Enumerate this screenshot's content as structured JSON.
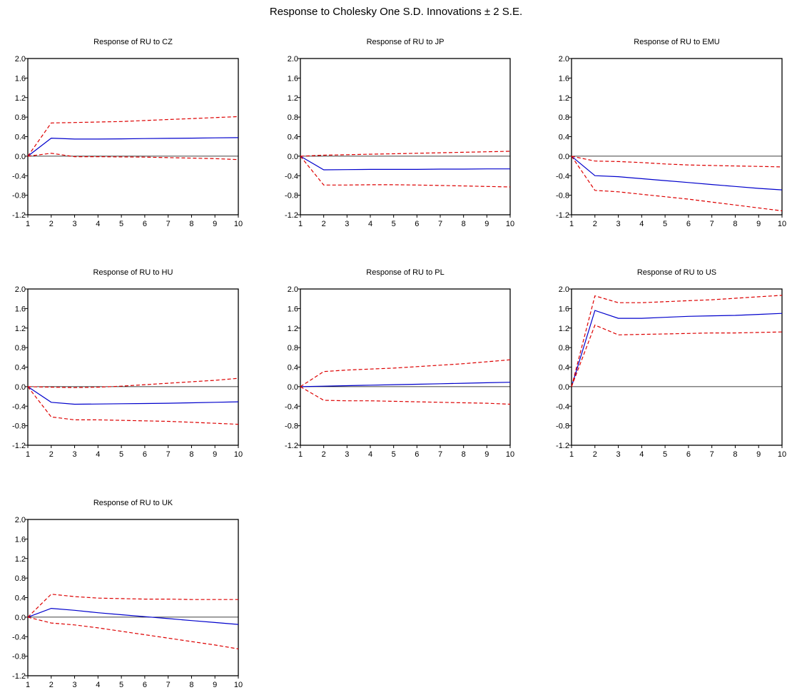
{
  "figure_title": "Response to Cholesky One S.D. Innovations ± 2 S.E.",
  "colors": {
    "response": "#0000cc",
    "bands": "#dd0000",
    "zero_line": "#000000",
    "axes": "#000000"
  },
  "chart_data": [
    {
      "type": "line",
      "title": "Response of RU to CZ",
      "x": [
        1,
        2,
        3,
        4,
        5,
        6,
        7,
        8,
        9,
        10
      ],
      "ylim": [
        -1.2,
        2.0
      ],
      "yticks": [
        "2.0",
        "1.6",
        "1.2",
        "0.8",
        "0.4",
        "0.0",
        "-0.4",
        "-0.8",
        "-1.2"
      ],
      "xticks": [
        "1",
        "2",
        "3",
        "4",
        "5",
        "6",
        "7",
        "8",
        "9",
        "10"
      ],
      "grid": false,
      "series": [
        {
          "role": "response",
          "values": [
            0.0,
            0.37,
            0.35,
            0.35,
            0.355,
            0.36,
            0.365,
            0.37,
            0.375,
            0.38
          ]
        },
        {
          "role": "upper_band",
          "values": [
            0.0,
            0.68,
            0.69,
            0.7,
            0.71,
            0.73,
            0.75,
            0.77,
            0.79,
            0.81
          ]
        },
        {
          "role": "lower_band",
          "values": [
            0.0,
            0.06,
            -0.01,
            -0.01,
            -0.015,
            -0.02,
            -0.03,
            -0.04,
            -0.05,
            -0.07
          ]
        }
      ]
    },
    {
      "type": "line",
      "title": "Response of RU to JP",
      "x": [
        1,
        2,
        3,
        4,
        5,
        6,
        7,
        8,
        9,
        10
      ],
      "ylim": [
        -1.2,
        2.0
      ],
      "yticks": [
        "2.0",
        "1.6",
        "1.2",
        "0.8",
        "0.4",
        "0.0",
        "-0.4",
        "-0.8",
        "-1.2"
      ],
      "xticks": [
        "1",
        "2",
        "3",
        "4",
        "5",
        "6",
        "7",
        "8",
        "9",
        "10"
      ],
      "grid": false,
      "series": [
        {
          "role": "response",
          "values": [
            0.0,
            -0.28,
            -0.275,
            -0.27,
            -0.27,
            -0.27,
            -0.265,
            -0.265,
            -0.26,
            -0.26
          ]
        },
        {
          "role": "upper_band",
          "values": [
            0.0,
            0.02,
            0.03,
            0.04,
            0.05,
            0.06,
            0.07,
            0.08,
            0.09,
            0.1
          ]
        },
        {
          "role": "lower_band",
          "values": [
            0.0,
            -0.59,
            -0.59,
            -0.585,
            -0.585,
            -0.59,
            -0.6,
            -0.61,
            -0.62,
            -0.63
          ]
        }
      ]
    },
    {
      "type": "line",
      "title": "Response of RU to EMU",
      "x": [
        1,
        2,
        3,
        4,
        5,
        6,
        7,
        8,
        9,
        10
      ],
      "ylim": [
        -1.2,
        2.0
      ],
      "yticks": [
        "2.0",
        "1.6",
        "1.2",
        "0.8",
        "0.4",
        "0.0",
        "-0.4",
        "-0.8",
        "-1.2"
      ],
      "xticks": [
        "1",
        "2",
        "3",
        "4",
        "5",
        "6",
        "7",
        "8",
        "9",
        "10"
      ],
      "grid": false,
      "series": [
        {
          "role": "response",
          "values": [
            0.0,
            -0.4,
            -0.42,
            -0.46,
            -0.5,
            -0.54,
            -0.58,
            -0.62,
            -0.66,
            -0.69
          ]
        },
        {
          "role": "upper_band",
          "values": [
            0.0,
            -0.1,
            -0.11,
            -0.13,
            -0.16,
            -0.18,
            -0.19,
            -0.2,
            -0.21,
            -0.22
          ]
        },
        {
          "role": "lower_band",
          "values": [
            0.0,
            -0.7,
            -0.73,
            -0.78,
            -0.83,
            -0.88,
            -0.94,
            -1.0,
            -1.06,
            -1.12
          ]
        }
      ]
    },
    {
      "type": "line",
      "title": "Response of RU to HU",
      "x": [
        1,
        2,
        3,
        4,
        5,
        6,
        7,
        8,
        9,
        10
      ],
      "ylim": [
        -1.2,
        2.0
      ],
      "yticks": [
        "2.0",
        "1.6",
        "1.2",
        "0.8",
        "0.4",
        "0.0",
        "-0.4",
        "-0.8",
        "-1.2"
      ],
      "xticks": [
        "1",
        "2",
        "3",
        "4",
        "5",
        "6",
        "7",
        "8",
        "9",
        "10"
      ],
      "grid": false,
      "series": [
        {
          "role": "response",
          "values": [
            0.0,
            -0.32,
            -0.36,
            -0.355,
            -0.35,
            -0.345,
            -0.34,
            -0.33,
            -0.32,
            -0.31
          ]
        },
        {
          "role": "upper_band",
          "values": [
            0.0,
            -0.01,
            -0.02,
            -0.01,
            0.01,
            0.04,
            0.07,
            0.1,
            0.13,
            0.17
          ]
        },
        {
          "role": "lower_band",
          "values": [
            0.0,
            -0.62,
            -0.68,
            -0.68,
            -0.69,
            -0.7,
            -0.71,
            -0.73,
            -0.75,
            -0.77
          ]
        }
      ]
    },
    {
      "type": "line",
      "title": "Response of RU to PL",
      "x": [
        1,
        2,
        3,
        4,
        5,
        6,
        7,
        8,
        9,
        10
      ],
      "ylim": [
        -1.2,
        2.0
      ],
      "yticks": [
        "2.0",
        "1.6",
        "1.2",
        "0.8",
        "0.4",
        "0.0",
        "-0.4",
        "-0.8",
        "-1.2"
      ],
      "xticks": [
        "1",
        "2",
        "3",
        "4",
        "5",
        "6",
        "7",
        "8",
        "9",
        "10"
      ],
      "grid": false,
      "series": [
        {
          "role": "response",
          "values": [
            0.0,
            0.01,
            0.02,
            0.03,
            0.04,
            0.05,
            0.06,
            0.07,
            0.08,
            0.09
          ]
        },
        {
          "role": "upper_band",
          "values": [
            0.0,
            0.31,
            0.34,
            0.36,
            0.38,
            0.41,
            0.44,
            0.47,
            0.51,
            0.55
          ]
        },
        {
          "role": "lower_band",
          "values": [
            0.0,
            -0.28,
            -0.29,
            -0.29,
            -0.3,
            -0.31,
            -0.32,
            -0.33,
            -0.34,
            -0.36
          ]
        }
      ]
    },
    {
      "type": "line",
      "title": "Response of RU to US",
      "x": [
        1,
        2,
        3,
        4,
        5,
        6,
        7,
        8,
        9,
        10
      ],
      "ylim": [
        -1.2,
        2.0
      ],
      "yticks": [
        "2.0",
        "1.6",
        "1.2",
        "0.8",
        "0.4",
        "0.0",
        "-0.4",
        "-0.8",
        "-1.2"
      ],
      "xticks": [
        "1",
        "2",
        "3",
        "4",
        "5",
        "6",
        "7",
        "8",
        "9",
        "10"
      ],
      "grid": false,
      "series": [
        {
          "role": "response",
          "values": [
            0.0,
            1.56,
            1.4,
            1.4,
            1.42,
            1.44,
            1.45,
            1.46,
            1.48,
            1.5
          ]
        },
        {
          "role": "upper_band",
          "values": [
            0.0,
            1.86,
            1.72,
            1.72,
            1.74,
            1.76,
            1.78,
            1.81,
            1.84,
            1.87
          ]
        },
        {
          "role": "lower_band",
          "values": [
            0.0,
            1.26,
            1.06,
            1.07,
            1.08,
            1.09,
            1.1,
            1.1,
            1.11,
            1.12
          ]
        }
      ]
    },
    {
      "type": "line",
      "title": "Response of RU to UK",
      "x": [
        1,
        2,
        3,
        4,
        5,
        6,
        7,
        8,
        9,
        10
      ],
      "ylim": [
        -1.2,
        2.0
      ],
      "yticks": [
        "2.0",
        "1.6",
        "1.2",
        "0.8",
        "0.4",
        "0.0",
        "-0.4",
        "-0.8",
        "-1.2"
      ],
      "xticks": [
        "1",
        "2",
        "3",
        "4",
        "5",
        "6",
        "7",
        "8",
        "9",
        "10"
      ],
      "grid": false,
      "series": [
        {
          "role": "response",
          "values": [
            0.0,
            0.18,
            0.14,
            0.09,
            0.05,
            0.01,
            -0.03,
            -0.07,
            -0.11,
            -0.15
          ]
        },
        {
          "role": "upper_band",
          "values": [
            0.0,
            0.47,
            0.42,
            0.39,
            0.38,
            0.37,
            0.37,
            0.36,
            0.36,
            0.36
          ]
        },
        {
          "role": "lower_band",
          "values": [
            0.0,
            -0.12,
            -0.16,
            -0.22,
            -0.29,
            -0.36,
            -0.43,
            -0.5,
            -0.57,
            -0.65
          ]
        }
      ]
    }
  ]
}
